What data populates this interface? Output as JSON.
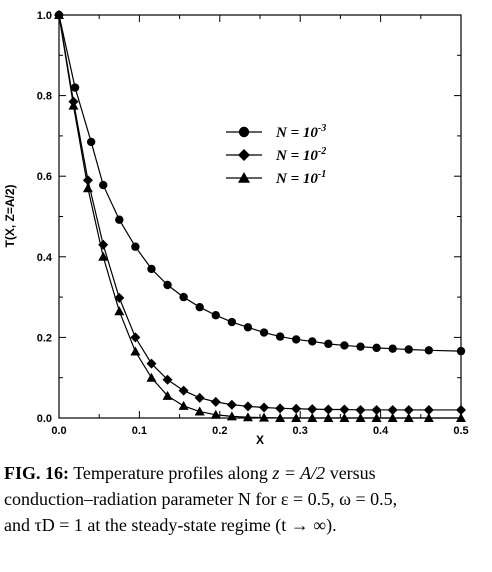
{
  "chart_data": {
    "type": "line",
    "title": "",
    "xlabel": "X",
    "ylabel": "T(X, Z=A/2)",
    "xlim": [
      0.0,
      0.5
    ],
    "ylim": [
      0.0,
      1.0
    ],
    "x_ticks": [
      "0.0",
      "0.1",
      "0.2",
      "0.3",
      "0.4",
      "0.5"
    ],
    "y_ticks": [
      "0.0",
      "0.2",
      "0.4",
      "0.6",
      "0.8",
      "1.0"
    ],
    "grid": false,
    "legend_position": "center",
    "series": [
      {
        "name": "N = 10-3",
        "legend_base": "N = 10",
        "legend_exp": "-3",
        "marker": "circle",
        "x": [
          0.0,
          0.02,
          0.04,
          0.055,
          0.075,
          0.095,
          0.115,
          0.135,
          0.155,
          0.175,
          0.195,
          0.215,
          0.235,
          0.255,
          0.275,
          0.295,
          0.315,
          0.335,
          0.355,
          0.375,
          0.395,
          0.415,
          0.435,
          0.46,
          0.5
        ],
        "y": [
          1.0,
          0.82,
          0.685,
          0.578,
          0.492,
          0.425,
          0.37,
          0.33,
          0.3,
          0.275,
          0.255,
          0.238,
          0.225,
          0.212,
          0.202,
          0.195,
          0.19,
          0.184,
          0.18,
          0.177,
          0.174,
          0.172,
          0.17,
          0.168,
          0.166
        ]
      },
      {
        "name": "N = 10-2",
        "legend_base": "N = 10",
        "legend_exp": "-2",
        "marker": "diamond",
        "x": [
          0.0,
          0.018,
          0.036,
          0.055,
          0.075,
          0.095,
          0.115,
          0.135,
          0.155,
          0.175,
          0.195,
          0.215,
          0.235,
          0.255,
          0.275,
          0.295,
          0.315,
          0.335,
          0.355,
          0.375,
          0.395,
          0.415,
          0.435,
          0.46,
          0.5
        ],
        "y": [
          1.0,
          0.785,
          0.59,
          0.43,
          0.298,
          0.2,
          0.135,
          0.095,
          0.068,
          0.05,
          0.04,
          0.033,
          0.029,
          0.026,
          0.024,
          0.023,
          0.022,
          0.021,
          0.021,
          0.02,
          0.02,
          0.02,
          0.02,
          0.02,
          0.02
        ]
      },
      {
        "name": "N = 10-1",
        "legend_base": "N = 10",
        "legend_exp": "-1",
        "marker": "triangle",
        "x": [
          0.0,
          0.018,
          0.036,
          0.055,
          0.075,
          0.095,
          0.115,
          0.135,
          0.155,
          0.175,
          0.195,
          0.215,
          0.235,
          0.255,
          0.275,
          0.295,
          0.315,
          0.335,
          0.355,
          0.375,
          0.395,
          0.415,
          0.435,
          0.46,
          0.5
        ],
        "y": [
          1.0,
          0.775,
          0.57,
          0.4,
          0.265,
          0.165,
          0.1,
          0.055,
          0.03,
          0.016,
          0.008,
          0.004,
          0.002,
          0.001,
          0.0,
          0.0,
          0.0,
          0.0,
          0.0,
          0.0,
          0.0,
          0.0,
          0.0,
          0.0,
          0.0
        ]
      }
    ]
  },
  "caption": {
    "label": "FIG. 16:",
    "line1_text": "Temperature profiles along",
    "line1_math": "z = A/2",
    "line1_end": "versus",
    "line2": "conduction–radiation parameter N for ε = 0.5, ω = 0.5,",
    "line3": "and τD = 1 at the steady-state regime (t → ∞)."
  }
}
